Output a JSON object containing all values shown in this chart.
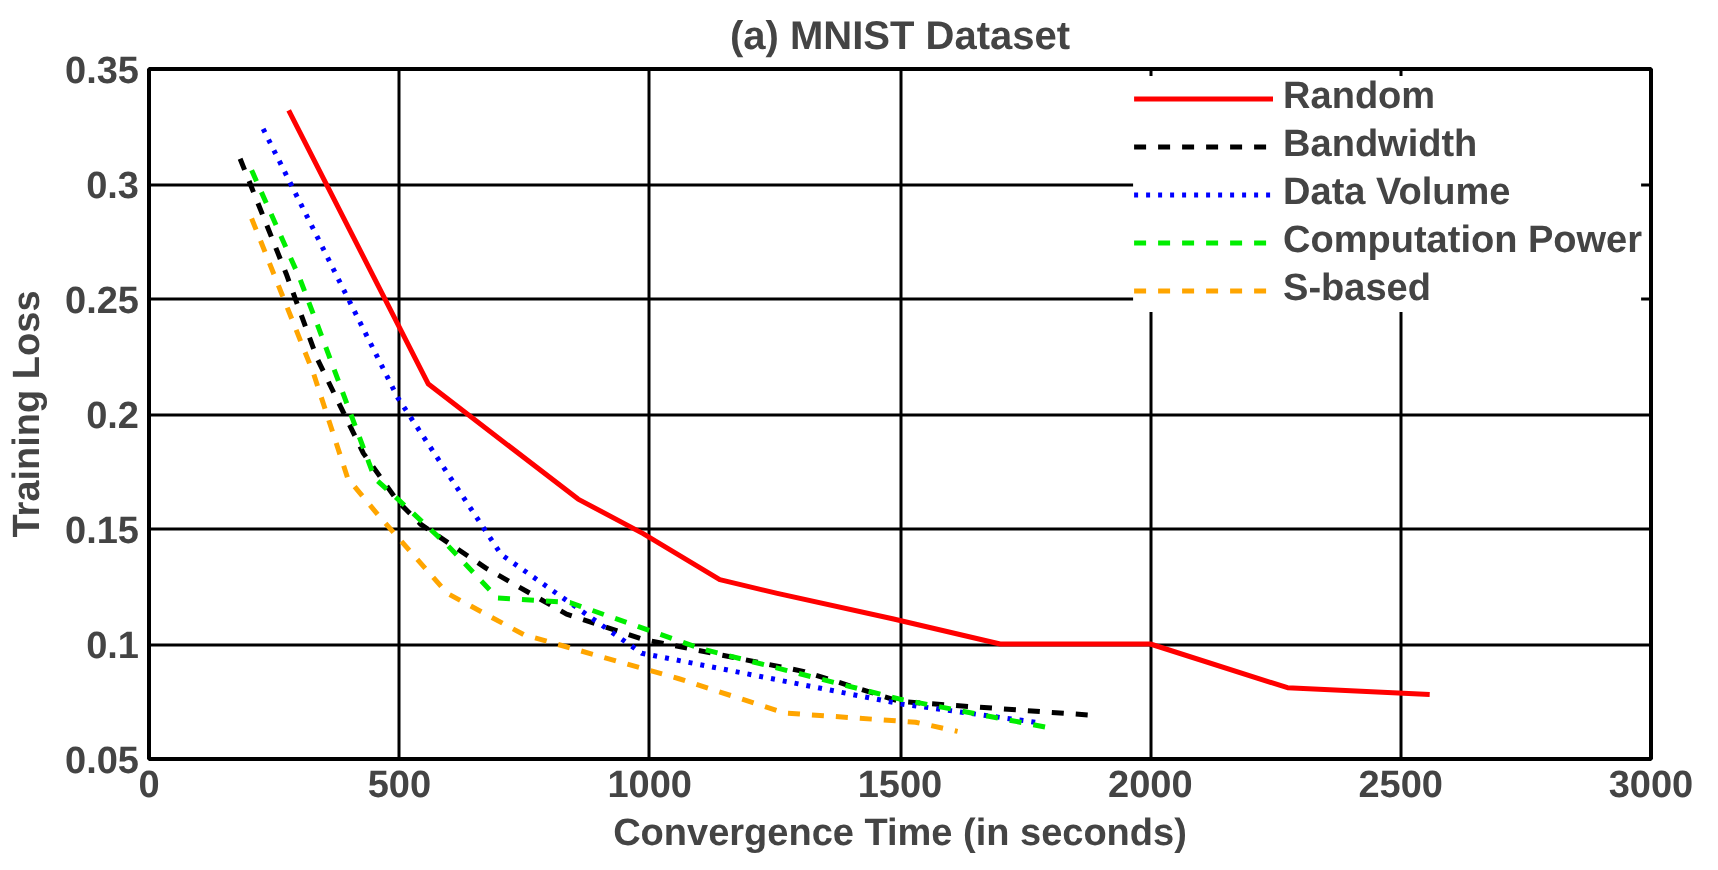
{
  "chart_data": {
    "type": "line",
    "title": "(a) MNIST Dataset",
    "xlabel": "Convergence Time (in seconds)",
    "ylabel": "Training Loss",
    "xlim": [
      0,
      3000
    ],
    "ylim": [
      0.05,
      0.35
    ],
    "xticks": [
      0,
      500,
      1000,
      1500,
      2000,
      2500,
      3000
    ],
    "yticks": [
      0.05,
      0.1,
      0.15,
      0.2,
      0.25,
      0.3,
      0.35
    ],
    "grid": true,
    "legend": "top right",
    "marker": "none",
    "series": [
      {
        "name": "Random",
        "color": "#ff0000",
        "line_style": "solid",
        "x": [
          279,
          558,
          857,
          987,
          1140,
          1255,
          1485,
          1700,
          2000,
          2274,
          2558
        ],
        "values": [
          0.332,
          0.213,
          0.163,
          0.148,
          0.128,
          0.122,
          0.111,
          0.1,
          0.1,
          0.081,
          0.078
        ]
      },
      {
        "name": "Bandwidth",
        "color": "#000000",
        "line_style": "dashed",
        "x": [
          182,
          274,
          336,
          428,
          497,
          543,
          673,
          834,
          987,
          1309,
          1500,
          1884
        ],
        "values": [
          0.311,
          0.261,
          0.224,
          0.183,
          0.162,
          0.152,
          0.133,
          0.113,
          0.102,
          0.088,
          0.075,
          0.069
        ]
      },
      {
        "name": "Data Volume",
        "color": "#0000ff",
        "line_style": "dotted",
        "x": [
          228,
          497,
          703,
          984,
          1500,
          1770
        ],
        "values": [
          0.324,
          0.207,
          0.139,
          0.096,
          0.074,
          0.066
        ]
      },
      {
        "name": "Computation Power",
        "color": "#00ee00",
        "line_style": "dashed",
        "x": [
          205,
          301,
          336,
          451,
          497,
          596,
          696,
          841,
          1102,
          1500,
          1800
        ],
        "values": [
          0.306,
          0.259,
          0.239,
          0.172,
          0.163,
          0.143,
          0.12,
          0.118,
          0.098,
          0.076,
          0.0635
        ]
      },
      {
        "name": "S-based",
        "color": "#ffa500",
        "line_style": "dashed",
        "x": [
          205,
          328,
          397,
          458,
          596,
          749,
          1057,
          1270,
          1531,
          1615
        ],
        "values": [
          0.285,
          0.218,
          0.172,
          0.156,
          0.122,
          0.104,
          0.085,
          0.07,
          0.066,
          0.062
        ]
      }
    ]
  }
}
